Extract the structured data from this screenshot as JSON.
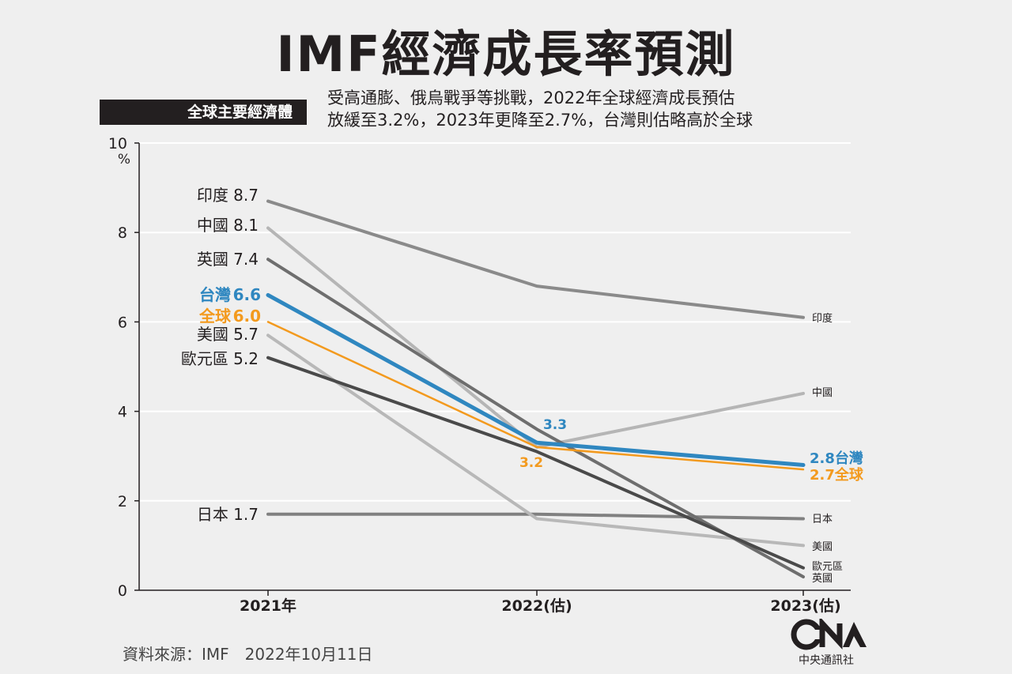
{
  "title": "IMF經濟成長率預測",
  "tag": "全球主要經濟體",
  "subtitle_lines": [
    "受高通膨、俄烏戰爭等挑戰，2022年全球經濟成長預估",
    "放緩至3.2%，2023年更降至2.7%，台灣則估略高於全球"
  ],
  "source": "資料來源：IMF　2022年10月11日",
  "logo_text": "中央通訊社",
  "chart_data": {
    "type": "line",
    "x": [
      "2021年",
      "2022(估)",
      "2023(估)"
    ],
    "ylabel": "%",
    "ylim": [
      0,
      10
    ],
    "yticks": [
      0,
      2,
      4,
      6,
      8,
      10
    ],
    "grid": true,
    "series": [
      {
        "name": "印度",
        "values": [
          8.7,
          6.8,
          6.1
        ],
        "color": "#8a8a8a",
        "width": 4,
        "start_label": "印度 8.7",
        "end_label": "印度"
      },
      {
        "name": "中國",
        "values": [
          8.1,
          3.2,
          4.4
        ],
        "color": "#b5b5b5",
        "width": 4,
        "start_label": "中國 8.1",
        "end_label": "中國"
      },
      {
        "name": "英國",
        "values": [
          7.4,
          3.6,
          0.3
        ],
        "color": "#6e6e6e",
        "width": 4,
        "start_label": "英國 7.4",
        "end_label": "英國"
      },
      {
        "name": "美國",
        "values": [
          5.7,
          1.6,
          1.0
        ],
        "color": "#b8b8b8",
        "width": 4,
        "start_label": "美國 5.7",
        "end_label": "美國"
      },
      {
        "name": "歐元區",
        "values": [
          5.2,
          3.1,
          0.5
        ],
        "color": "#4a4a4a",
        "width": 4,
        "start_label": "歐元區 5.2",
        "end_label": "歐元區"
      },
      {
        "name": "日本",
        "values": [
          1.7,
          1.7,
          1.6
        ],
        "color": "#808080",
        "width": 4,
        "start_label": "日本 1.7",
        "end_label": "日本"
      },
      {
        "name": "全球",
        "values": [
          6.0,
          3.2,
          2.7
        ],
        "color": "#f39a1e",
        "width": 2.5,
        "start_label_a": "全球",
        "start_label_b": "6.0",
        "mid_label": "3.2",
        "end_label": "2.7全球",
        "highlight": true
      },
      {
        "name": "台灣",
        "values": [
          6.6,
          3.3,
          2.8
        ],
        "color": "#2f87c0",
        "width": 5,
        "start_label_a": "台灣",
        "start_label_b": "6.6",
        "mid_label": "3.3",
        "end_label": "2.8台灣",
        "highlight": true
      }
    ]
  }
}
